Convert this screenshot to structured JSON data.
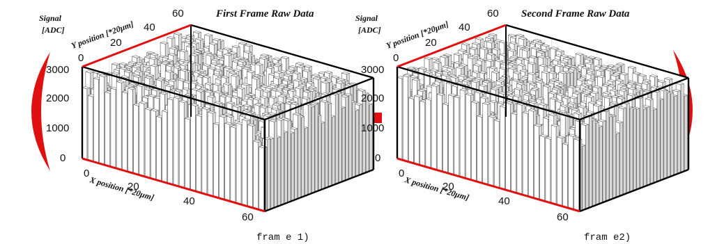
{
  "colors": {
    "accent": "#e01010",
    "box": "#000000",
    "bar": "#ffffff",
    "bar_edge": "#222222"
  },
  "operator": "minus",
  "chart_data": [
    {
      "type": "bar3d",
      "title": "First Frame Raw Data",
      "zlabel_line1": "Signal",
      "zlabel_line2": "[ADC]",
      "ylabel": "Y position [*20μm]",
      "xlabel": "X position [*20μm]",
      "x_ticks": [
        "0",
        "20",
        "40",
        "60"
      ],
      "y_ticks": [
        "0",
        "20",
        "40",
        "60"
      ],
      "z_ticks": [
        "0",
        "1000",
        "2000",
        "3000"
      ],
      "xlim": [
        0,
        64
      ],
      "ylim": [
        0,
        64
      ],
      "zlim": [
        0,
        3000
      ],
      "grid_cells": [
        64,
        64
      ],
      "typical_signal": 2500,
      "caption": "fram e 1)"
    },
    {
      "type": "bar3d",
      "title": "Second Frame Raw Data",
      "zlabel_line1": "Signal",
      "zlabel_line2": "[ADC]",
      "ylabel": "Y position [*20μm]",
      "xlabel": "X position [*20μm]",
      "x_ticks": [
        "0",
        "20",
        "40",
        "60"
      ],
      "y_ticks": [
        "0",
        "20",
        "40",
        "60"
      ],
      "z_ticks": [
        "0",
        "1000",
        "2000",
        "3000"
      ],
      "xlim": [
        0,
        64
      ],
      "ylim": [
        0,
        64
      ],
      "zlim": [
        0,
        3000
      ],
      "grid_cells": [
        64,
        64
      ],
      "typical_signal": 2500,
      "caption": "fram e2)"
    }
  ]
}
